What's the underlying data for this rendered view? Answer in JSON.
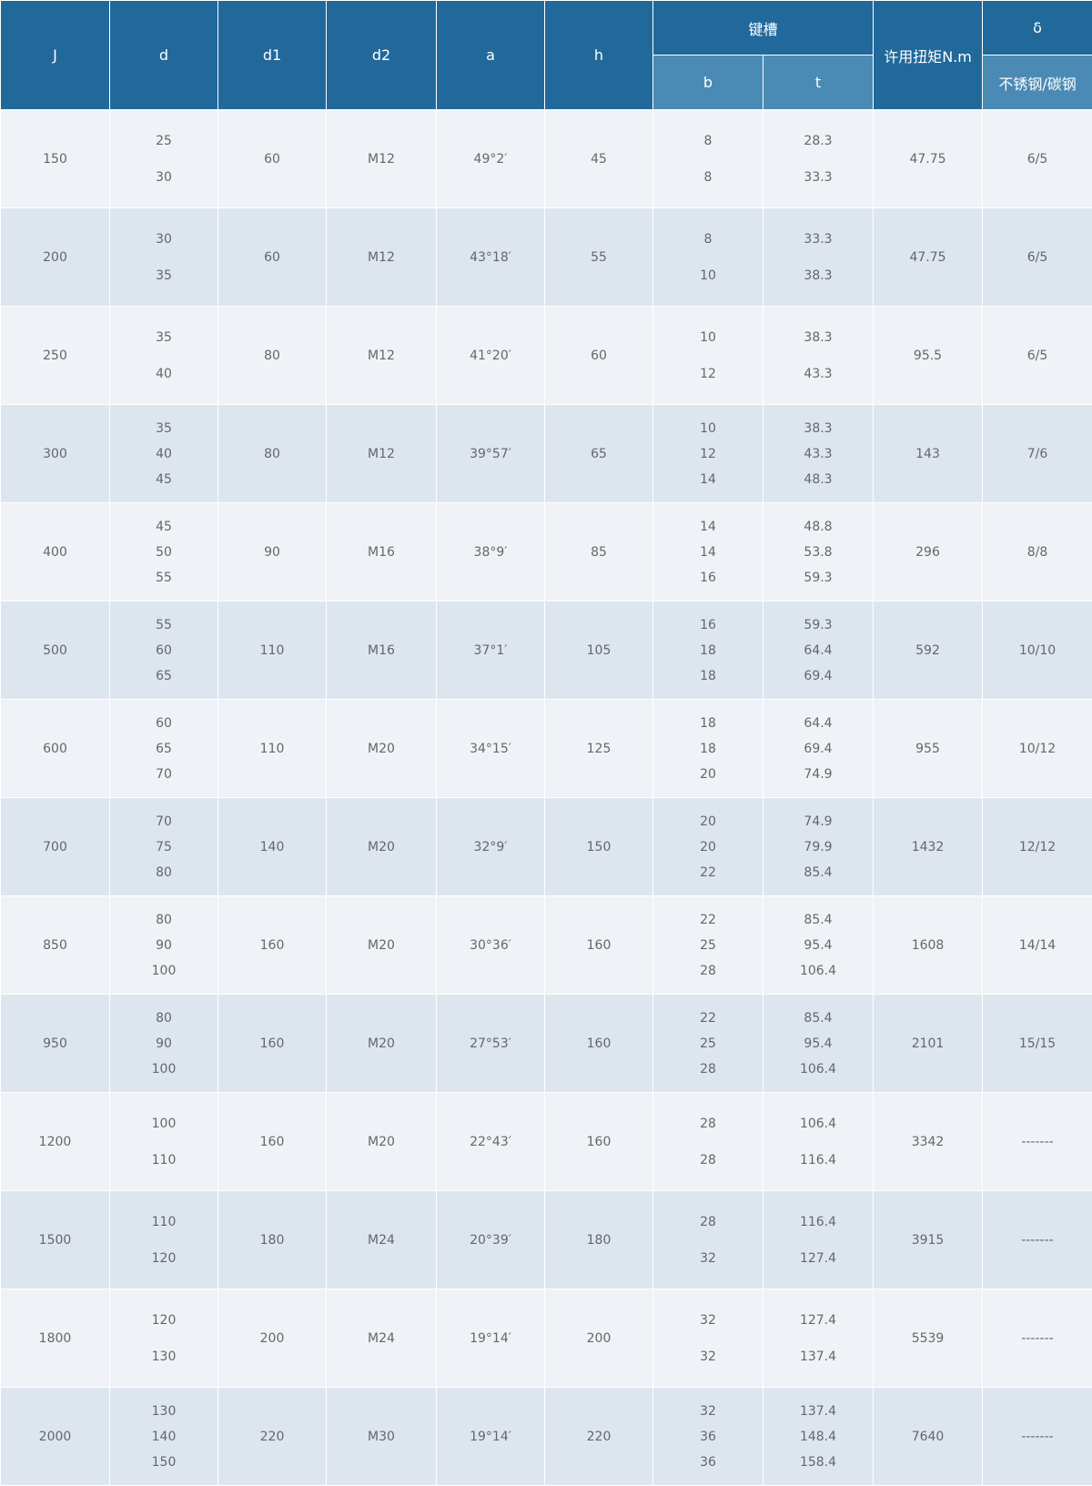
{
  "header": {
    "cols": [
      "J",
      "d",
      "d1",
      "d2",
      "a",
      "h"
    ],
    "keyway": "键槽",
    "keyway_sub": [
      "b",
      "t"
    ],
    "torque": "许用扭矩N.m",
    "delta": "δ",
    "delta_sub": "不锈钢/碳钢"
  },
  "rows": [
    {
      "J": "150",
      "d": [
        "25",
        "30"
      ],
      "d1": "60",
      "d2": "M12",
      "a": "49°2′",
      "h": "45",
      "b": [
        "8",
        "8"
      ],
      "t": [
        "28.3",
        "33.3"
      ],
      "torque": "47.75",
      "delta": "6/5"
    },
    {
      "J": "200",
      "d": [
        "30",
        "35"
      ],
      "d1": "60",
      "d2": "M12",
      "a": "43°18′",
      "h": "55",
      "b": [
        "8",
        "10"
      ],
      "t": [
        "33.3",
        "38.3"
      ],
      "torque": "47.75",
      "delta": "6/5"
    },
    {
      "J": "250",
      "d": [
        "35",
        "40"
      ],
      "d1": "80",
      "d2": "M12",
      "a": "41°20′",
      "h": "60",
      "b": [
        "10",
        "12"
      ],
      "t": [
        "38.3",
        "43.3"
      ],
      "torque": "95.5",
      "delta": "6/5"
    },
    {
      "J": "300",
      "d": [
        "35",
        "40",
        "45"
      ],
      "d1": "80",
      "d2": "M12",
      "a": "39°57′",
      "h": "65",
      "b": [
        "10",
        "12",
        "14"
      ],
      "t": [
        "38.3",
        "43.3",
        "48.3"
      ],
      "torque": "143",
      "delta": "7/6"
    },
    {
      "J": "400",
      "d": [
        "45",
        "50",
        "55"
      ],
      "d1": "90",
      "d2": "M16",
      "a": "38°9′",
      "h": "85",
      "b": [
        "14",
        "14",
        "16"
      ],
      "t": [
        "48.8",
        "53.8",
        "59.3"
      ],
      "torque": "296",
      "delta": "8/8"
    },
    {
      "J": "500",
      "d": [
        "55",
        "60",
        "65"
      ],
      "d1": "110",
      "d2": "M16",
      "a": "37°1′",
      "h": "105",
      "b": [
        "16",
        "18",
        "18"
      ],
      "t": [
        "59.3",
        "64.4",
        "69.4"
      ],
      "torque": "592",
      "delta": "10/10"
    },
    {
      "J": "600",
      "d": [
        "60",
        "65",
        "70"
      ],
      "d1": "110",
      "d2": "M20",
      "a": "34°15′",
      "h": "125",
      "b": [
        "18",
        "18",
        "20"
      ],
      "t": [
        "64.4",
        "69.4",
        "74.9"
      ],
      "torque": "955",
      "delta": "10/12"
    },
    {
      "J": "700",
      "d": [
        "70",
        "75",
        "80"
      ],
      "d1": "140",
      "d2": "M20",
      "a": "32°9′",
      "h": "150",
      "b": [
        "20",
        "20",
        "22"
      ],
      "t": [
        "74.9",
        "79.9",
        "85.4"
      ],
      "torque": "1432",
      "delta": "12/12"
    },
    {
      "J": "850",
      "d": [
        "80",
        "90",
        "100"
      ],
      "d1": "160",
      "d2": "M20",
      "a": "30°36′",
      "h": "160",
      "b": [
        "22",
        "25",
        "28"
      ],
      "t": [
        "85.4",
        "95.4",
        "106.4"
      ],
      "torque": "1608",
      "delta": "14/14"
    },
    {
      "J": "950",
      "d": [
        "80",
        "90",
        "100"
      ],
      "d1": "160",
      "d2": "M20",
      "a": "27°53′",
      "h": "160",
      "b": [
        "22",
        "25",
        "28"
      ],
      "t": [
        "85.4",
        "95.4",
        "106.4"
      ],
      "torque": "2101",
      "delta": "15/15"
    },
    {
      "J": "1200",
      "d": [
        "100",
        "110"
      ],
      "d1": "160",
      "d2": "M20",
      "a": "22°43′",
      "h": "160",
      "b": [
        "28",
        "28"
      ],
      "t": [
        "106.4",
        "116.4"
      ],
      "torque": "3342",
      "delta": "-------"
    },
    {
      "J": "1500",
      "d": [
        "110",
        "120"
      ],
      "d1": "180",
      "d2": "M24",
      "a": "20°39′",
      "h": "180",
      "b": [
        "28",
        "32"
      ],
      "t": [
        "116.4",
        "127.4"
      ],
      "torque": "3915",
      "delta": "-------"
    },
    {
      "J": "1800",
      "d": [
        "120",
        "130"
      ],
      "d1": "200",
      "d2": "M24",
      "a": "19°14′",
      "h": "200",
      "b": [
        "32",
        "32"
      ],
      "t": [
        "127.4",
        "137.4"
      ],
      "torque": "5539",
      "delta": "-------"
    },
    {
      "J": "2000",
      "d": [
        "130",
        "140",
        "150"
      ],
      "d1": "220",
      "d2": "M30",
      "a": "19°14′",
      "h": "220",
      "b": [
        "32",
        "36",
        "36"
      ],
      "t": [
        "137.4",
        "148.4",
        "158.4"
      ],
      "torque": "7640",
      "delta": "-------"
    }
  ]
}
